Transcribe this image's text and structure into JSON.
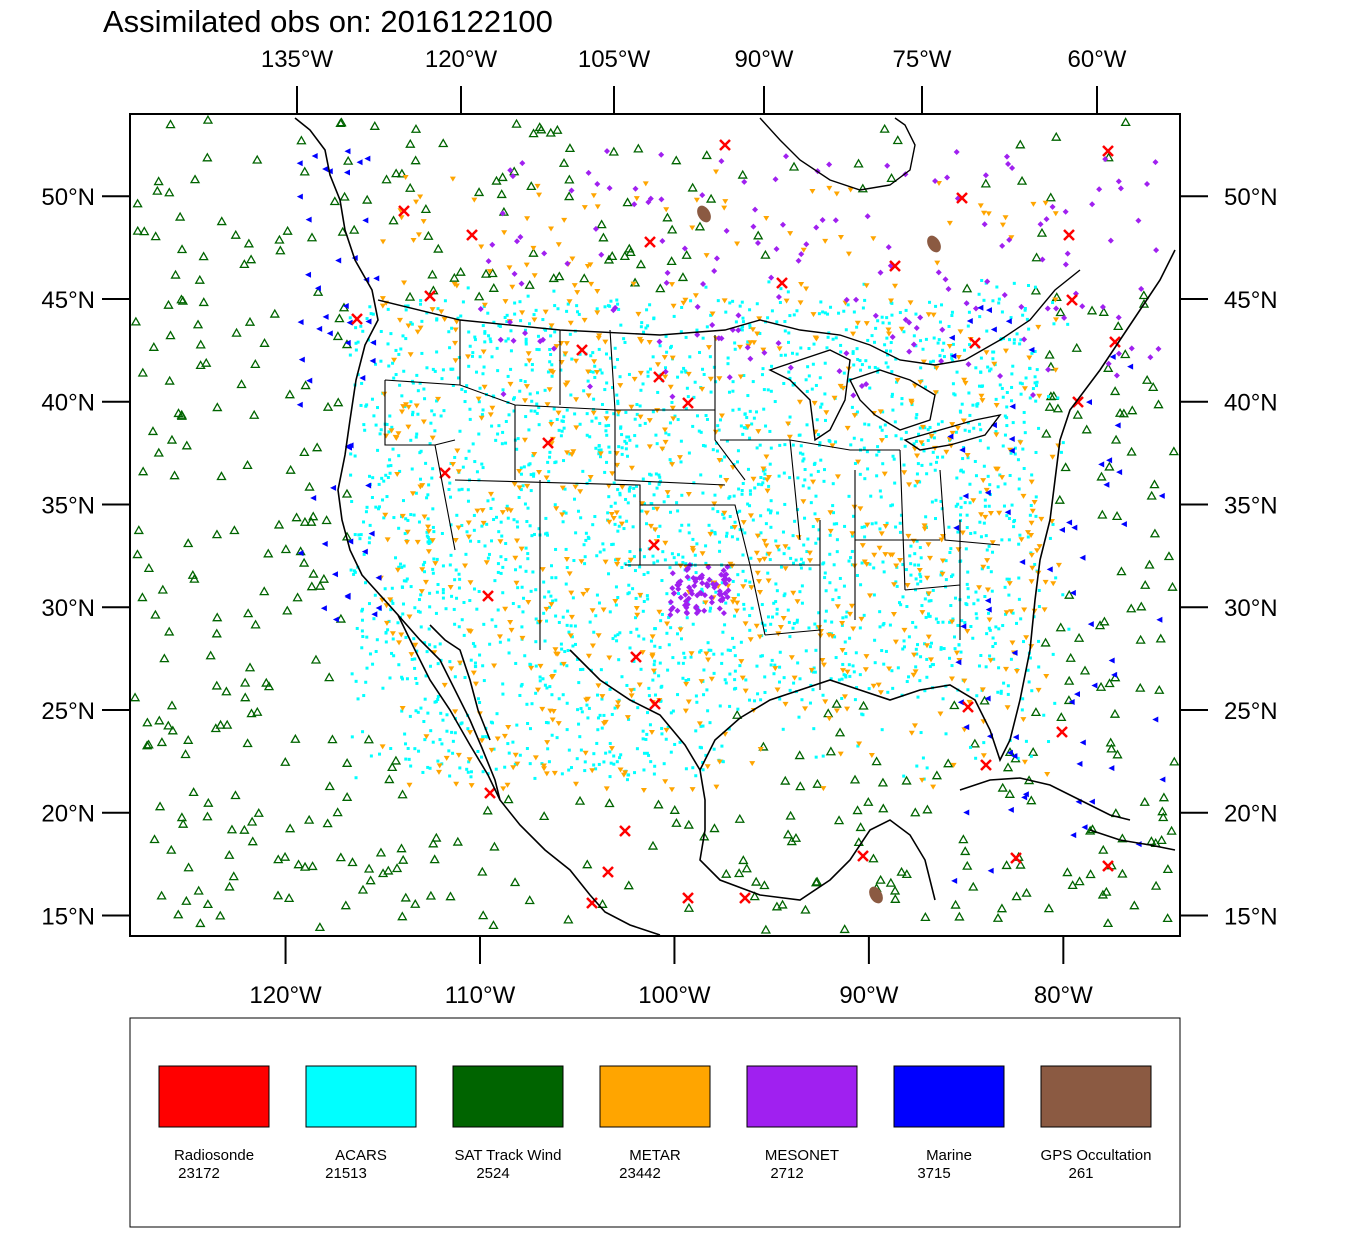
{
  "title": "Assimilated obs on: 2016122100",
  "axes": {
    "top_lon_labels": [
      "135°W",
      "120°W",
      "105°W",
      "90°W",
      "75°W",
      "60°W"
    ],
    "bottom_lon_labels": [
      "120°W",
      "110°W",
      "100°W",
      "90°W",
      "80°W"
    ],
    "lat_labels": [
      "50°N",
      "45°N",
      "40°N",
      "35°N",
      "30°N",
      "25°N",
      "20°N",
      "15°N"
    ]
  },
  "legend": {
    "items": [
      {
        "label": "Radiosonde",
        "count": "23172",
        "color": "#ff0000"
      },
      {
        "label": "ACARS",
        "count": "21513",
        "color": "#00ffff"
      },
      {
        "label": "SAT Track Wind",
        "count": "2524",
        "color": "#006400"
      },
      {
        "label": "METAR",
        "count": "23442",
        "color": "#ffa500"
      },
      {
        "label": "MESONET",
        "count": "2712",
        "color": "#a020f0"
      },
      {
        "label": "Marine",
        "count": "3715",
        "color": "#0000ff"
      },
      {
        "label": "GPS Occultation",
        "count": "261",
        "color": "#8b5a42"
      }
    ]
  },
  "map_data": {
    "lon_range": [
      -128,
      -74
    ],
    "lat_range": [
      14,
      54
    ],
    "bottom_lon_ticks": [
      -120,
      -110,
      -100,
      -90,
      -80
    ],
    "lat_ticks": [
      50,
      45,
      40,
      35,
      30,
      25,
      20,
      15
    ],
    "top_lon_ticks": [
      -135,
      -120,
      -105,
      -90,
      -75,
      -60
    ]
  }
}
